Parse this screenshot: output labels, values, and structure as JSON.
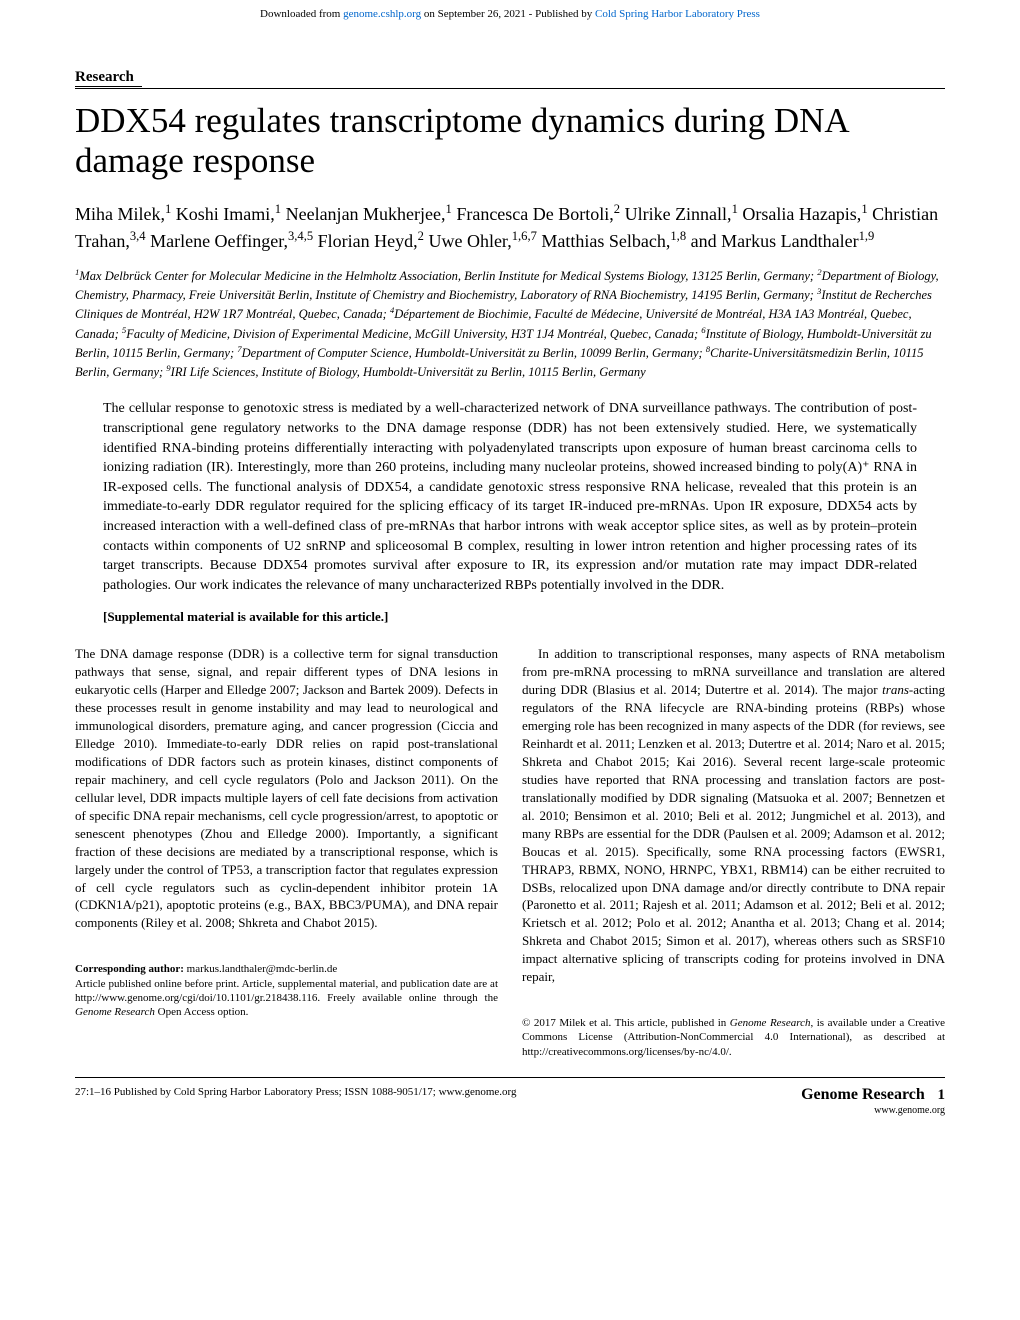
{
  "download_bar": {
    "prefix": "Downloaded from ",
    "link1": "genome.cshlp.org",
    "middle": " on September 26, 2021 - Published by ",
    "link2": "Cold Spring Harbor Laboratory Press"
  },
  "section_label": "Research",
  "title": "DDX54 regulates transcriptome dynamics during DNA damage response",
  "authors_html": "Miha Milek,<sup>1</sup> Koshi Imami,<sup>1</sup> Neelanjan Mukherjee,<sup>1</sup> Francesca De Bortoli,<sup>2</sup> Ulrike Zinnall,<sup>1</sup> Orsalia Hazapis,<sup>1</sup> Christian Trahan,<sup>3,4</sup> Marlene Oeffinger,<sup>3,4,5</sup> Florian Heyd,<sup>2</sup> Uwe Ohler,<sup>1,6,7</sup> Matthias Selbach,<sup>1,8</sup> and Markus Landthaler<sup>1,9</sup>",
  "affiliations_html": "<sup>1</sup>Max Delbrück Center for Molecular Medicine in the Helmholtz Association, Berlin Institute for Medical Systems Biology, 13125 Berlin, Germany; <sup>2</sup>Department of Biology, Chemistry, Pharmacy, Freie Universität Berlin, Institute of Chemistry and Biochemistry, Laboratory of RNA Biochemistry, 14195 Berlin, Germany; <sup>3</sup>Institut de Recherches Cliniques de Montréal, H2W 1R7 Montréal, Quebec, Canada; <sup>4</sup>Département de Biochimie, Faculté de Médecine, Université de Montréal, H3A 1A3 Montréal, Quebec, Canada; <sup>5</sup>Faculty of Medicine, Division of Experimental Medicine, McGill University, H3T 1J4 Montréal, Quebec, Canada; <sup>6</sup>Institute of Biology, Humboldt-Universität zu Berlin, 10115 Berlin, Germany; <sup>7</sup>Department of Computer Science, Humboldt-Universität zu Berlin, 10099 Berlin, Germany; <sup>8</sup>Charite-Universitätsmedizin Berlin, 10115 Berlin, Germany; <sup>9</sup>IRI Life Sciences, Institute of Biology, Humboldt-Universität zu Berlin, 10115 Berlin, Germany",
  "abstract": "The cellular response to genotoxic stress is mediated by a well-characterized network of DNA surveillance pathways. The contribution of post-transcriptional gene regulatory networks to the DNA damage response (DDR) has not been extensively studied. Here, we systematically identified RNA-binding proteins differentially interacting with polyadenylated transcripts upon exposure of human breast carcinoma cells to ionizing radiation (IR). Interestingly, more than 260 proteins, including many nucleolar proteins, showed increased binding to poly(A)⁺ RNA in IR-exposed cells. The functional analysis of DDX54, a candidate genotoxic stress responsive RNA helicase, revealed that this protein is an immediate-to-early DDR regulator required for the splicing efficacy of its target IR-induced pre-mRNAs. Upon IR exposure, DDX54 acts by increased interaction with a well-defined class of pre-mRNAs that harbor introns with weak acceptor splice sites, as well as by protein–protein contacts within components of U2 snRNP and spliceosomal B complex, resulting in lower intron retention and higher processing rates of its target transcripts. Because DDX54 promotes survival after exposure to IR, its expression and/or mutation rate may impact DDR-related pathologies. Our work indicates the relevance of many uncharacterized RBPs potentially involved in the DDR.",
  "supplemental": "[Supplemental material is available for this article.]",
  "body": {
    "left_col": "The DNA damage response (DDR) is a collective term for signal transduction pathways that sense, signal, and repair different types of DNA lesions in eukaryotic cells (Harper and Elledge 2007; Jackson and Bartek 2009). Defects in these processes result in genome instability and may lead to neurological and immunological disorders, premature aging, and cancer progression (Ciccia and Elledge 2010). Immediate-to-early DDR relies on rapid post-translational modifications of DDR factors such as protein kinases, distinct components of repair machinery, and cell cycle regulators (Polo and Jackson 2011). On the cellular level, DDR impacts multiple layers of cell fate decisions from activation of specific DNA repair mechanisms, cell cycle progression/arrest, to apoptotic or senescent phenotypes (Zhou and Elledge 2000). Importantly, a significant fraction of these decisions are mediated by a transcriptional response, which is largely under the control of TP53, a transcription factor that regulates expression of cell cycle regulators such as cyclin-dependent inhibitor protein 1A (CDKN1A/p21), apoptotic proteins (e.g., BAX, BBC3/PUMA), and DNA repair components (Riley et al. 2008; Shkreta and Chabot 2015).",
    "right_col_p1": "In addition to transcriptional responses, many aspects of RNA metabolism from pre-mRNA processing to mRNA surveillance and translation are altered during DDR (Blasius et al. 2014; Dutertre et al. 2014). The major trans-acting regulators of the RNA lifecycle are RNA-binding proteins (RBPs) whose emerging role has been recognized in many aspects of the DDR (for reviews, see Reinhardt et al. 2011; Lenzken et al. 2013; Dutertre et al. 2014; Naro et al. 2015; Shkreta and Chabot 2015; Kai 2016). Several recent large-scale proteomic studies have reported that RNA processing and translation factors are post-translationally modified by DDR signaling (Matsuoka et al. 2007; Bennetzen et al. 2010; Bensimon et al. 2010; Beli et al. 2012; Jungmichel et al. 2013), and many RBPs are essential for the DDR (Paulsen et al. 2009; Adamson et al. 2012; Boucas et al. 2015). Specifically, some RNA processing factors (EWSR1, THRAP3, RBMX, NONO, HRNPC, YBX1, RBM14) can be either recruited to DSBs, relocalized upon DNA damage and/or directly contribute to DNA repair (Paronetto et al. 2011; Rajesh et al. 2011; Adamson et al. 2012; Beli et al. 2012; Krietsch et al. 2012; Polo et al. 2012; Anantha et al. 2013; Chang et al. 2014; Shkreta and Chabot 2015; Simon et al. 2017), whereas others such as SRSF10 impact alternative splicing of transcripts coding for proteins involved in DNA repair,"
  },
  "corresponding": {
    "label": "Corresponding author: ",
    "email": "markus.landthaler@mdc-berlin.de",
    "note": "Article published online before print. Article, supplemental material, and publication date are at http://www.genome.org/cgi/doi/10.1101/gr.218438.116. Freely available online through the Genome Research Open Access option."
  },
  "copyright": "© 2017 Milek et al. This article, published in Genome Research, is available under a Creative Commons License (Attribution-NonCommercial 4.0 International), as described at http://creativecommons.org/licenses/by-nc/4.0/.",
  "footer": {
    "left": "27:1–16 Published by Cold Spring Harbor Laboratory Press; ISSN 1088-9051/17; www.genome.org",
    "journal": "Genome Research",
    "page": "1",
    "url": "www.genome.org"
  }
}
